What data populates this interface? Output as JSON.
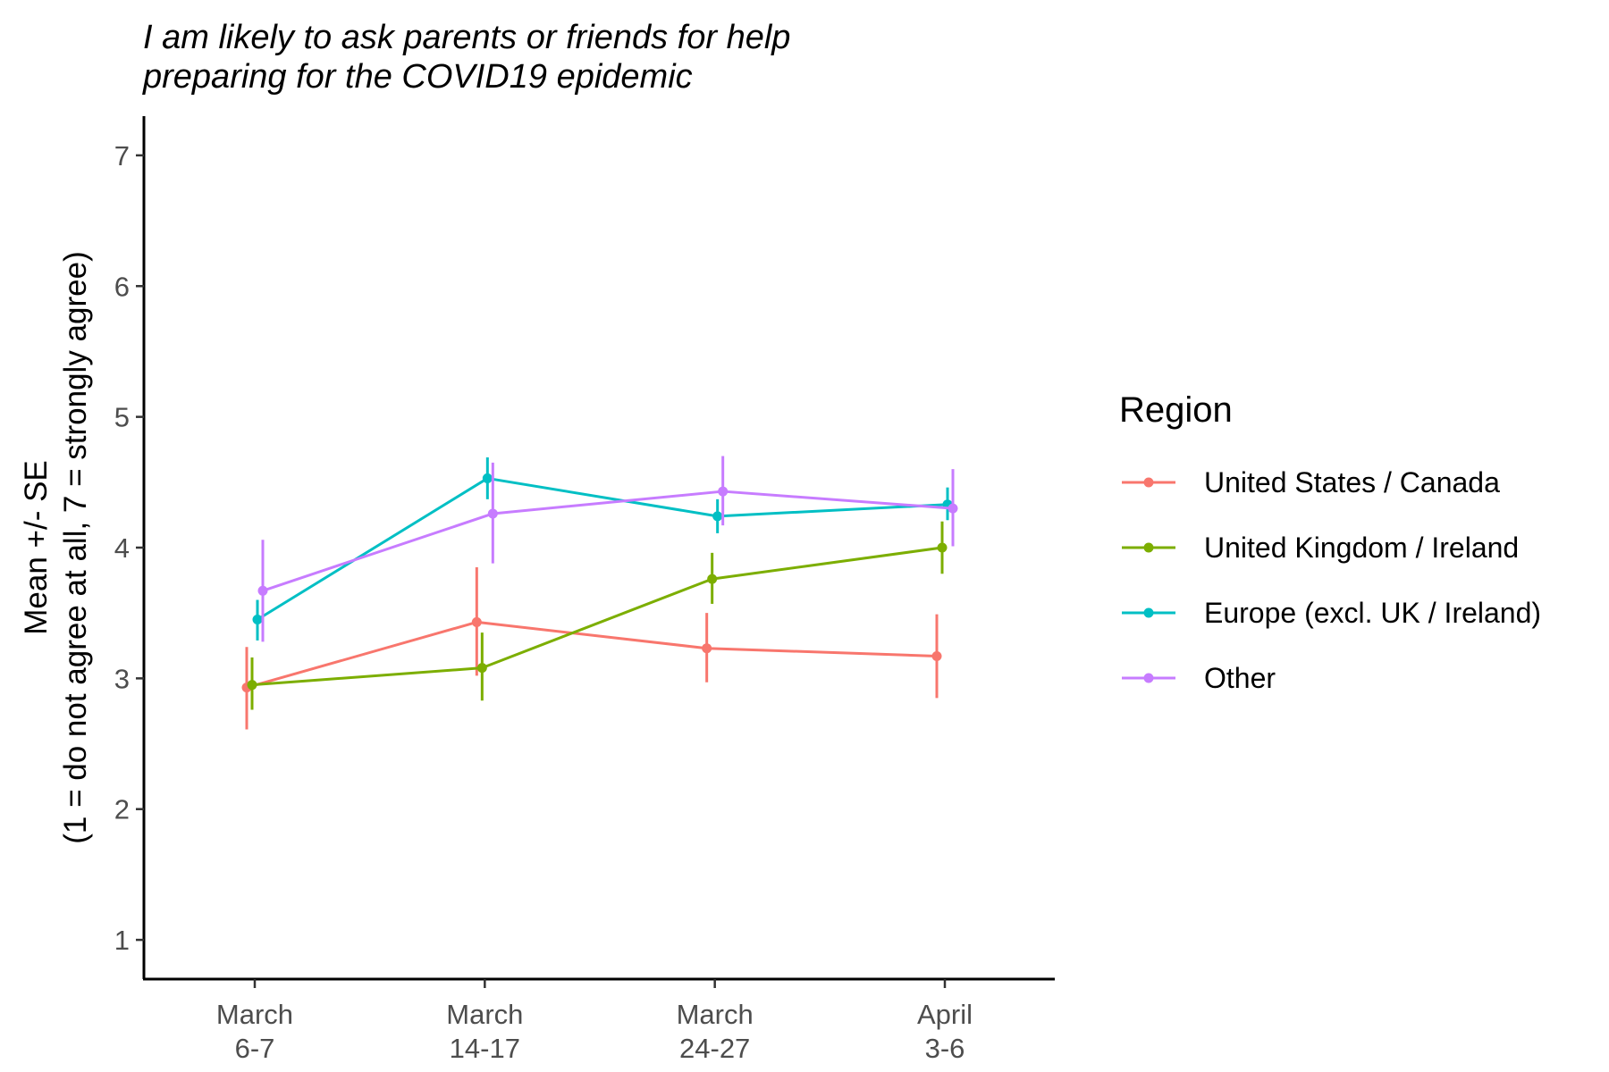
{
  "chart_data": {
    "type": "line",
    "title_lines": [
      "I am likely to ask parents or friends for help",
      "preparing for the COVID19 epidemic"
    ],
    "ylabel_lines": [
      "Mean +/- SE",
      "(1 = do not agree at all, 7 = strongly agree)"
    ],
    "xlabel": "",
    "categories": [
      [
        "March",
        "6-7"
      ],
      [
        "March",
        "14-17"
      ],
      [
        "March",
        "24-27"
      ],
      [
        "April",
        "3-6"
      ]
    ],
    "ylim": [
      0.7,
      7.3
    ],
    "yticks": [
      1,
      2,
      3,
      4,
      5,
      6,
      7
    ],
    "grid": false,
    "legend": {
      "title": "Region",
      "position": "right"
    },
    "series": [
      {
        "name": "United States / Canada",
        "color": "#F8766D",
        "values": [
          2.93,
          3.43,
          3.23,
          3.17
        ],
        "se_low": [
          2.61,
          3.02,
          2.97,
          2.85
        ],
        "se_high": [
          3.24,
          3.85,
          3.5,
          3.49
        ]
      },
      {
        "name": "United Kingdom / Ireland",
        "color": "#7CAE00",
        "values": [
          2.95,
          3.08,
          3.76,
          4.0
        ],
        "se_low": [
          2.76,
          2.83,
          3.57,
          3.8
        ],
        "se_high": [
          3.16,
          3.35,
          3.96,
          4.2
        ]
      },
      {
        "name": "Europe (excl. UK / Ireland)",
        "color": "#00BFC4",
        "values": [
          3.45,
          4.53,
          4.24,
          4.33
        ],
        "se_low": [
          3.29,
          4.37,
          4.11,
          4.21
        ],
        "se_high": [
          3.6,
          4.69,
          4.37,
          4.46
        ]
      },
      {
        "name": "Other",
        "color": "#C77CFF",
        "values": [
          3.67,
          4.26,
          4.43,
          4.3
        ],
        "se_low": [
          3.28,
          3.88,
          4.17,
          4.01
        ],
        "se_high": [
          4.06,
          4.65,
          4.7,
          4.6
        ]
      }
    ]
  }
}
